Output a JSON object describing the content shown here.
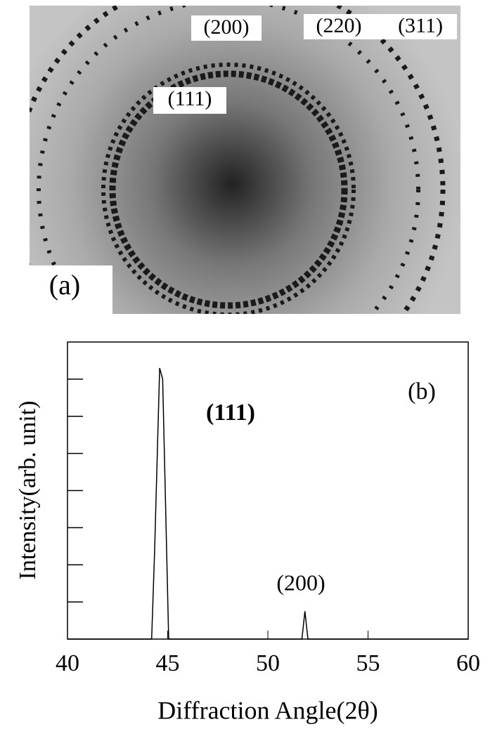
{
  "chart_data": [
    {
      "type": "image",
      "labels": [
        "(200)",
        "(220)",
        "(311)",
        "(111)"
      ],
      "panel_label": "(a)"
    },
    {
      "type": "line",
      "panel_label": "(b)",
      "xlabel": "Diffraction Angle(2θ)",
      "ylabel": "Intensity(arb. unit)",
      "annotations": [
        "(111)",
        "(200)"
      ],
      "x": [
        40,
        44.2,
        44.35,
        44.6,
        44.75,
        45.05,
        51.7,
        51.85,
        52.0,
        60
      ],
      "values": [
        0,
        0,
        2.4,
        7.3,
        7.0,
        0,
        0,
        0.75,
        0,
        0
      ],
      "color": "#000000",
      "xlim": [
        40,
        60
      ],
      "xticks": [
        40,
        45,
        50,
        55,
        60
      ],
      "ylim": [
        0,
        8
      ],
      "yticks": [
        1,
        2,
        3,
        4,
        5,
        6,
        7
      ]
    }
  ]
}
